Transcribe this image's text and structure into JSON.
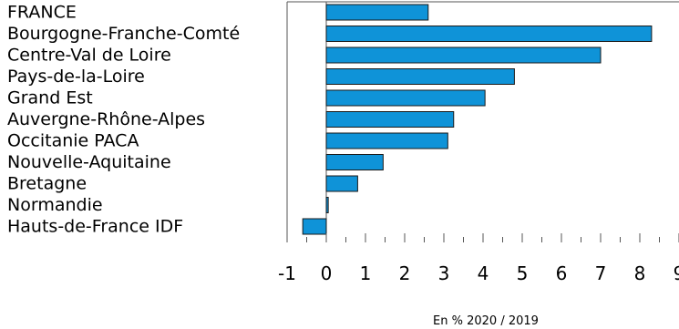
{
  "chart_data": {
    "type": "bar",
    "orientation": "horizontal",
    "categories": [
      "FRANCE",
      "Bourgogne-Franche-Comté",
      "Centre-Val de Loire",
      "Pays-de-la-Loire",
      "Grand Est",
      "Auvergne-Rhône-Alpes",
      "Occitanie PACA",
      "Nouvelle-Aquitaine",
      "Bretagne",
      "Normandie",
      "Hauts-de-France IDF"
    ],
    "values": [
      2.6,
      8.3,
      7.0,
      4.8,
      4.05,
      3.25,
      3.1,
      1.45,
      0.8,
      0.05,
      -0.6
    ],
    "xlabel": "En % 2020 / 2019",
    "xlim": [
      -1,
      9
    ],
    "xticks": [
      "-1",
      "0",
      "1",
      "2",
      "3",
      "4",
      "5",
      "6",
      "7",
      "8",
      "9"
    ],
    "bar_color": "#0f93d8",
    "grid": false
  }
}
